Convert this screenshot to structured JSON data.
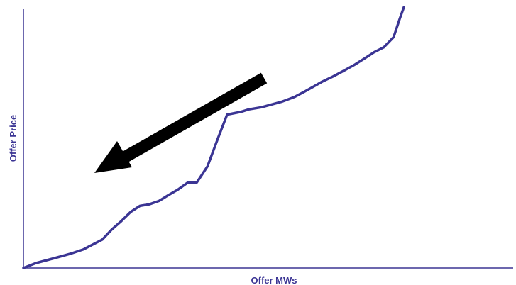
{
  "chart_data": {
    "type": "line",
    "title": "",
    "xlabel": "Offer MWs",
    "ylabel": "Offer Price",
    "xlim": [
      0,
      100
    ],
    "ylim": [
      0,
      100
    ],
    "grid": false,
    "tick_labels": false,
    "series": [
      {
        "color": "#3b3594",
        "x": [
          0,
          2.6,
          6.4,
          9.5,
          12.2,
          16.1,
          18.0,
          20.0,
          21.9,
          23.8,
          25.7,
          27.7,
          29.6,
          31.6,
          33.6,
          35.4,
          37.6,
          39.7,
          41.6,
          44.5,
          46.0,
          48.6,
          52.7,
          55.4,
          57.3,
          59.3,
          61.0,
          63.2,
          65.5,
          67.7,
          69.8,
          71.6,
          73.6,
          75.6,
          76.8,
          77.7
        ],
        "y": [
          0,
          1.9,
          3.8,
          5.4,
          7.1,
          10.9,
          14.7,
          18.0,
          21.5,
          23.8,
          24.4,
          25.7,
          27.9,
          30.1,
          32.8,
          32.8,
          39.0,
          49.6,
          58.8,
          59.9,
          60.8,
          61.6,
          63.7,
          65.6,
          67.5,
          69.6,
          71.4,
          73.4,
          75.7,
          78.0,
          80.5,
          82.7,
          84.6,
          88.5,
          95.3,
          100
        ]
      }
    ],
    "annotation": {
      "type": "arrow",
      "direction": "down-left",
      "color": "#000000"
    }
  }
}
